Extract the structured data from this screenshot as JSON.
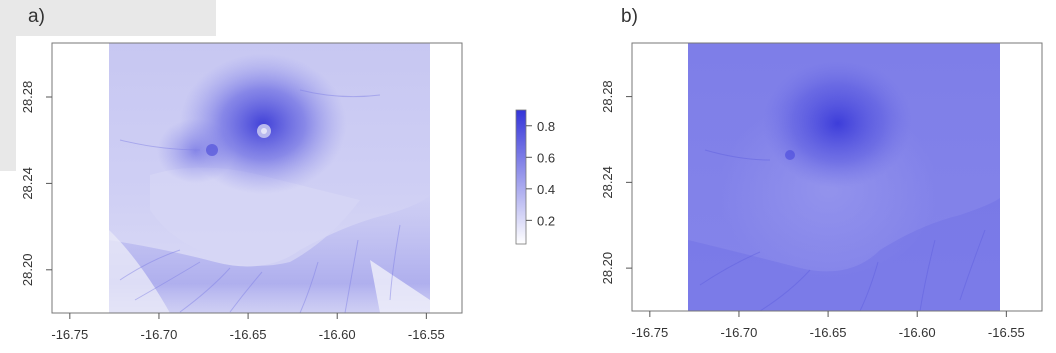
{
  "panels": {
    "a": {
      "label": "a)"
    },
    "b": {
      "label": "b)"
    }
  },
  "colors": {
    "low": "#f4f4fb",
    "high": "#3434d8",
    "frame": "#777777"
  },
  "chart_data": [
    {
      "type": "heatmap",
      "panel": "a",
      "xlim": [
        -16.76,
        -16.53
      ],
      "ylim": [
        28.18,
        28.305
      ],
      "x_ticks": [
        -16.75,
        -16.7,
        -16.65,
        -16.6,
        -16.55
      ],
      "x_tick_labels": [
        "-16.75",
        "-16.70",
        "-16.65",
        "-16.60",
        "-16.55"
      ],
      "y_ticks": [
        28.2,
        28.24,
        28.28
      ],
      "y_tick_labels": [
        "28.20",
        "28.24",
        "28.28"
      ],
      "data_extent": {
        "x": [
          -16.725,
          -16.55
        ],
        "y": [
          28.18,
          28.305
        ]
      },
      "legend": {
        "ticks": [
          0.2,
          0.4,
          0.6,
          0.8
        ],
        "tick_labels": [
          "0.2",
          "0.4",
          "0.6",
          "0.8"
        ],
        "range": [
          0.05,
          0.9
        ]
      }
    },
    {
      "type": "heatmap",
      "panel": "b",
      "xlim": [
        -16.76,
        -16.53
      ],
      "ylim": [
        28.18,
        28.305
      ],
      "x_ticks": [
        -16.75,
        -16.7,
        -16.65,
        -16.6,
        -16.55
      ],
      "x_tick_labels": [
        "-16.75",
        "-16.70",
        "-16.65",
        "-16.60",
        "-16.55"
      ],
      "y_ticks": [
        28.2,
        28.24,
        28.28
      ],
      "y_tick_labels": [
        "28.20",
        "28.24",
        "28.28"
      ],
      "data_extent": {
        "x": [
          -16.725,
          -16.55
        ],
        "y": [
          28.18,
          28.305
        ]
      }
    }
  ]
}
